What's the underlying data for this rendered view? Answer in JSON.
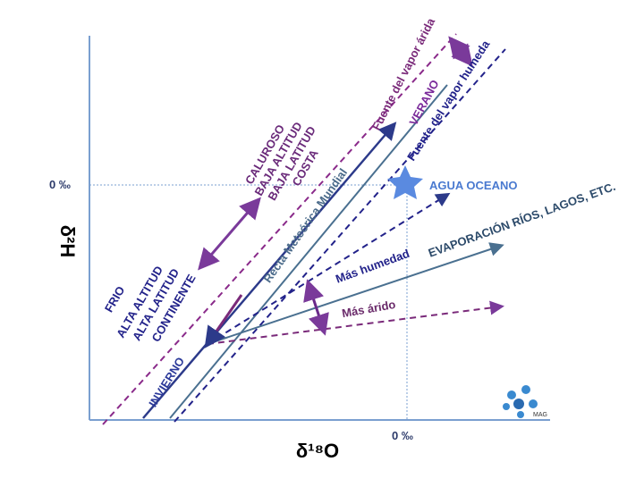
{
  "diagram": {
    "y_axis_label": "δ²H",
    "x_axis_label": "δ¹⁸O",
    "y_zero": "0 ‰",
    "x_zero": "0 ‰",
    "arid_source": "Fuente del vapor árida",
    "humid_source": "Fuente del vapor humeda",
    "summer": "VERANO",
    "winter": "INVIERNO",
    "warm_group": [
      "CALUROSO",
      "BAJA ALTITUD",
      "BAJA LATITUD",
      "COSTA"
    ],
    "cold_group": [
      "FRIO",
      "ALTA ALTITUD",
      "ALTA LATITUD",
      "CONTINENTE"
    ],
    "ocean": "AGUA OCEANO",
    "gmwl": "Recta Meteórica Mundial",
    "evaporation": "EVAPORACIÓN RÍOS, LAGOS, ETC.",
    "more_humid": "Más humedad",
    "more_arid": "Más árido",
    "logo": "MAG"
  }
}
